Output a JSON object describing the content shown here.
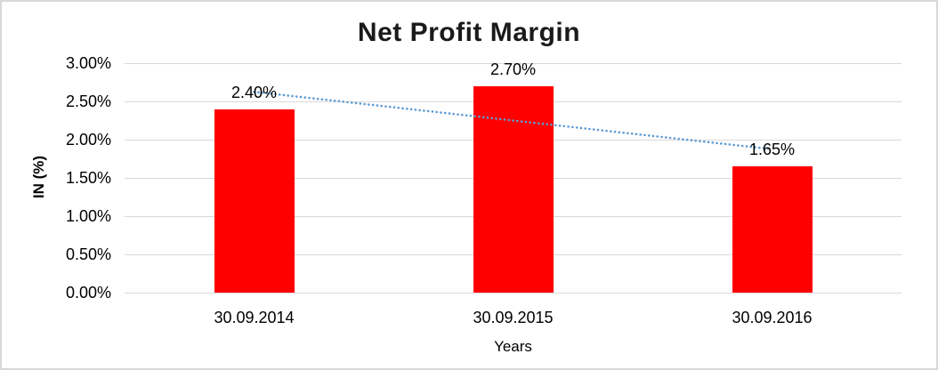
{
  "chart_data": {
    "type": "bar",
    "title": "Net Profit Margin",
    "xlabel": "Years",
    "ylabel": "IN (%)",
    "categories": [
      "30.09.2014",
      "30.09.2015",
      "30.09.2016"
    ],
    "series": [
      {
        "name": "Net Profit Margin",
        "values": [
          2.4,
          2.7,
          1.65
        ]
      }
    ],
    "data_labels": [
      "2.40%",
      "2.70%",
      "1.65%"
    ],
    "unit": "percent",
    "ylim": [
      0,
      3.0
    ],
    "ytick_step": 0.5,
    "yticks_top_to_bottom": [
      "3.00%",
      "2.50%",
      "2.00%",
      "1.50%",
      "1.00%",
      "0.50%",
      "0.00%"
    ],
    "grid": true,
    "legend": "none",
    "bar_color": "#ff0000",
    "gridline_color": "#d9d9d9",
    "text_color": "#000000",
    "title_color": "#1a1a1a",
    "trendline": {
      "type": "linear",
      "style": "dotted",
      "color": "#5b9bd5",
      "start_value": 2.625,
      "end_value": 1.875
    }
  }
}
